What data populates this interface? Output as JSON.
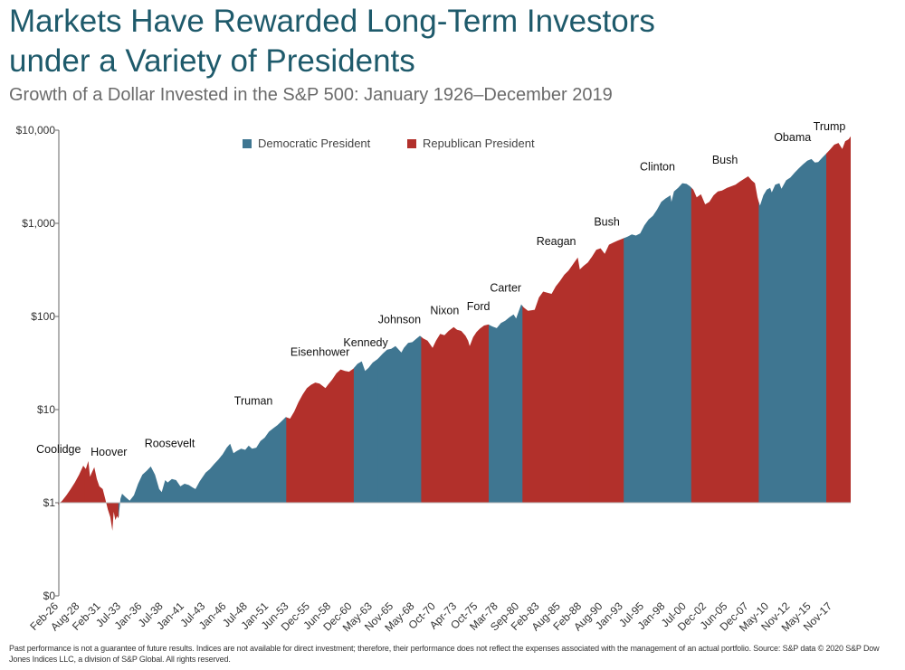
{
  "header": {
    "title_line1": "Markets Have Rewarded Long-Term Investors",
    "title_line2": "under a Variety of Presidents",
    "subtitle": "Growth of a Dollar Invested in the S&P 500: January 1926–December 2019"
  },
  "footer": {
    "disclaimer": "Past performance is not a guarantee of future results. Indices are not available for direct investment; therefore, their performance does not reflect the expenses associated with the management of an actual portfolio. Source: S&P data © 2020 S&P Dow Jones Indices LLC, a division of S&P Global. All rights reserved."
  },
  "colors": {
    "democratic": "#3f7691",
    "republican": "#b2302b",
    "axis": "#666666"
  },
  "chart_data": {
    "type": "area",
    "scale": "log",
    "ylim": [
      0.1,
      10000
    ],
    "xlim": [
      1926.1,
      2019.95
    ],
    "y_ticks": [
      {
        "value": 0.1,
        "label": "$0"
      },
      {
        "value": 1,
        "label": "$1"
      },
      {
        "value": 10,
        "label": "$10"
      },
      {
        "value": 100,
        "label": "$100"
      },
      {
        "value": 1000,
        "label": "$1,000"
      },
      {
        "value": 10000,
        "label": "$10,000"
      }
    ],
    "x_ticks": [
      {
        "t": 1926.1,
        "label": "Feb-26"
      },
      {
        "t": 1928.6,
        "label": "Aug-28"
      },
      {
        "t": 1931.1,
        "label": "Feb-31"
      },
      {
        "t": 1933.5,
        "label": "Jul-33"
      },
      {
        "t": 1936.0,
        "label": "Jan-36"
      },
      {
        "t": 1938.5,
        "label": "Jul-38"
      },
      {
        "t": 1941.0,
        "label": "Jan-41"
      },
      {
        "t": 1943.5,
        "label": "Jul-43"
      },
      {
        "t": 1946.0,
        "label": "Jan-46"
      },
      {
        "t": 1948.5,
        "label": "Jul-48"
      },
      {
        "t": 1951.0,
        "label": "Jan-51"
      },
      {
        "t": 1953.4,
        "label": "Jun-53"
      },
      {
        "t": 1955.9,
        "label": "Dec-55"
      },
      {
        "t": 1958.4,
        "label": "Jun-58"
      },
      {
        "t": 1960.9,
        "label": "Dec-60"
      },
      {
        "t": 1963.3,
        "label": "May-63"
      },
      {
        "t": 1965.8,
        "label": "Nov-65"
      },
      {
        "t": 1968.3,
        "label": "May-68"
      },
      {
        "t": 1970.8,
        "label": "Oct-70"
      },
      {
        "t": 1973.3,
        "label": "Apr-73"
      },
      {
        "t": 1975.8,
        "label": "Oct-75"
      },
      {
        "t": 1978.2,
        "label": "Mar-78"
      },
      {
        "t": 1980.7,
        "label": "Sep-80"
      },
      {
        "t": 1983.1,
        "label": "Feb-83"
      },
      {
        "t": 1985.6,
        "label": "Aug-85"
      },
      {
        "t": 1988.1,
        "label": "Feb-88"
      },
      {
        "t": 1990.6,
        "label": "Aug-90"
      },
      {
        "t": 1993.0,
        "label": "Jan-93"
      },
      {
        "t": 1995.5,
        "label": "Jul-95"
      },
      {
        "t": 1998.0,
        "label": "Jan-98"
      },
      {
        "t": 2000.5,
        "label": "Jul-00"
      },
      {
        "t": 2002.9,
        "label": "Dec-02"
      },
      {
        "t": 2005.4,
        "label": "Jun-05"
      },
      {
        "t": 2007.9,
        "label": "Dec-07"
      },
      {
        "t": 2010.3,
        "label": "May-10"
      },
      {
        "t": 2012.8,
        "label": "Nov-12"
      },
      {
        "t": 2015.3,
        "label": "May-15"
      },
      {
        "t": 2017.8,
        "label": "Nov-17"
      }
    ],
    "legend": [
      {
        "name": "Democratic President",
        "party": "D"
      },
      {
        "name": "Republican President",
        "party": "R"
      }
    ],
    "legend_position": "top-center",
    "presidents": [
      {
        "name": "Coolidge",
        "party": "R",
        "start": 1926.0,
        "end": 1929.17
      },
      {
        "name": "Hoover",
        "party": "R",
        "start": 1929.17,
        "end": 1933.17
      },
      {
        "name": "Roosevelt",
        "party": "D",
        "start": 1933.17,
        "end": 1945.3
      },
      {
        "name": "Truman",
        "party": "D",
        "start": 1945.3,
        "end": 1953.05
      },
      {
        "name": "Eisenhower",
        "party": "R",
        "start": 1953.05,
        "end": 1961.05
      },
      {
        "name": "Kennedy",
        "party": "D",
        "start": 1961.05,
        "end": 1963.9
      },
      {
        "name": "Johnson",
        "party": "D",
        "start": 1963.9,
        "end": 1969.05
      },
      {
        "name": "Nixon",
        "party": "R",
        "start": 1969.05,
        "end": 1974.6
      },
      {
        "name": "Ford",
        "party": "R",
        "start": 1974.6,
        "end": 1977.05
      },
      {
        "name": "Carter",
        "party": "D",
        "start": 1977.05,
        "end": 1981.05
      },
      {
        "name": "Reagan",
        "party": "R",
        "start": 1981.05,
        "end": 1989.05
      },
      {
        "name": "Bush",
        "party": "R",
        "start": 1989.05,
        "end": 1993.05
      },
      {
        "name": "Clinton",
        "party": "D",
        "start": 1993.05,
        "end": 2001.05
      },
      {
        "name": "Bush",
        "party": "R",
        "start": 2001.05,
        "end": 2009.05
      },
      {
        "name": "Obama",
        "party": "D",
        "start": 2009.05,
        "end": 2017.05
      },
      {
        "name": "Trump",
        "party": "R",
        "start": 2017.05,
        "end": 2019.95
      }
    ],
    "series": [
      {
        "t": 1926.0,
        "v": 0.95
      },
      {
        "t": 1926.5,
        "v": 1.05
      },
      {
        "t": 1927.0,
        "v": 1.2
      },
      {
        "t": 1927.5,
        "v": 1.4
      },
      {
        "t": 1928.0,
        "v": 1.65
      },
      {
        "t": 1928.5,
        "v": 2.0
      },
      {
        "t": 1929.0,
        "v": 2.5
      },
      {
        "t": 1929.3,
        "v": 2.3
      },
      {
        "t": 1929.6,
        "v": 2.8
      },
      {
        "t": 1929.8,
        "v": 1.9
      },
      {
        "t": 1930.0,
        "v": 2.1
      },
      {
        "t": 1930.3,
        "v": 2.4
      },
      {
        "t": 1930.6,
        "v": 1.8
      },
      {
        "t": 1930.9,
        "v": 1.5
      },
      {
        "t": 1931.3,
        "v": 1.4
      },
      {
        "t": 1931.6,
        "v": 1.1
      },
      {
        "t": 1931.9,
        "v": 0.85
      },
      {
        "t": 1932.2,
        "v": 0.7
      },
      {
        "t": 1932.45,
        "v": 0.5
      },
      {
        "t": 1932.6,
        "v": 0.8
      },
      {
        "t": 1932.8,
        "v": 0.65
      },
      {
        "t": 1933.0,
        "v": 0.72
      },
      {
        "t": 1933.17,
        "v": 0.68
      },
      {
        "t": 1933.4,
        "v": 1.1
      },
      {
        "t": 1933.6,
        "v": 1.25
      },
      {
        "t": 1934.0,
        "v": 1.15
      },
      {
        "t": 1934.5,
        "v": 1.05
      },
      {
        "t": 1935.0,
        "v": 1.2
      },
      {
        "t": 1935.5,
        "v": 1.6
      },
      {
        "t": 1936.0,
        "v": 2.0
      },
      {
        "t": 1936.5,
        "v": 2.2
      },
      {
        "t": 1937.0,
        "v": 2.45
      },
      {
        "t": 1937.5,
        "v": 2.0
      },
      {
        "t": 1938.0,
        "v": 1.4
      },
      {
        "t": 1938.3,
        "v": 1.3
      },
      {
        "t": 1938.7,
        "v": 1.75
      },
      {
        "t": 1939.0,
        "v": 1.65
      },
      {
        "t": 1939.5,
        "v": 1.8
      },
      {
        "t": 1940.0,
        "v": 1.75
      },
      {
        "t": 1940.5,
        "v": 1.5
      },
      {
        "t": 1941.0,
        "v": 1.6
      },
      {
        "t": 1941.5,
        "v": 1.55
      },
      {
        "t": 1942.0,
        "v": 1.45
      },
      {
        "t": 1942.3,
        "v": 1.4
      },
      {
        "t": 1942.8,
        "v": 1.7
      },
      {
        "t": 1943.5,
        "v": 2.1
      },
      {
        "t": 1944.0,
        "v": 2.3
      },
      {
        "t": 1944.5,
        "v": 2.6
      },
      {
        "t": 1945.0,
        "v": 2.9
      },
      {
        "t": 1945.5,
        "v": 3.3
      },
      {
        "t": 1946.0,
        "v": 3.9
      },
      {
        "t": 1946.4,
        "v": 4.3
      },
      {
        "t": 1946.8,
        "v": 3.4
      },
      {
        "t": 1947.2,
        "v": 3.6
      },
      {
        "t": 1947.7,
        "v": 3.8
      },
      {
        "t": 1948.2,
        "v": 3.7
      },
      {
        "t": 1948.6,
        "v": 4.1
      },
      {
        "t": 1949.0,
        "v": 3.8
      },
      {
        "t": 1949.5,
        "v": 3.9
      },
      {
        "t": 1950.0,
        "v": 4.6
      },
      {
        "t": 1950.5,
        "v": 5.0
      },
      {
        "t": 1951.0,
        "v": 5.8
      },
      {
        "t": 1951.5,
        "v": 6.3
      },
      {
        "t": 1952.0,
        "v": 6.8
      },
      {
        "t": 1952.5,
        "v": 7.5
      },
      {
        "t": 1953.0,
        "v": 8.3
      },
      {
        "t": 1953.5,
        "v": 8.0
      },
      {
        "t": 1954.0,
        "v": 9.5
      },
      {
        "t": 1954.5,
        "v": 12.0
      },
      {
        "t": 1955.0,
        "v": 14.5
      },
      {
        "t": 1955.5,
        "v": 17.0
      },
      {
        "t": 1956.0,
        "v": 18.5
      },
      {
        "t": 1956.5,
        "v": 19.5
      },
      {
        "t": 1957.0,
        "v": 19.0
      },
      {
        "t": 1957.7,
        "v": 17.0
      },
      {
        "t": 1958.0,
        "v": 18.5
      },
      {
        "t": 1958.5,
        "v": 21.0
      },
      {
        "t": 1959.0,
        "v": 24.5
      },
      {
        "t": 1959.5,
        "v": 27.0
      },
      {
        "t": 1960.0,
        "v": 26.0
      },
      {
        "t": 1960.5,
        "v": 25.5
      },
      {
        "t": 1961.0,
        "v": 27.5
      },
      {
        "t": 1961.5,
        "v": 31.0
      },
      {
        "t": 1962.0,
        "v": 33.0
      },
      {
        "t": 1962.4,
        "v": 26.0
      },
      {
        "t": 1962.8,
        "v": 28.0
      },
      {
        "t": 1963.3,
        "v": 32.0
      },
      {
        "t": 1963.9,
        "v": 35.0
      },
      {
        "t": 1964.5,
        "v": 40.0
      },
      {
        "t": 1965.0,
        "v": 44.0
      },
      {
        "t": 1965.5,
        "v": 45.0
      },
      {
        "t": 1966.0,
        "v": 48.0
      },
      {
        "t": 1966.7,
        "v": 41.0
      },
      {
        "t": 1967.0,
        "v": 46.0
      },
      {
        "t": 1967.5,
        "v": 52.0
      },
      {
        "t": 1968.0,
        "v": 53.0
      },
      {
        "t": 1968.5,
        "v": 58.0
      },
      {
        "t": 1968.9,
        "v": 62.0
      },
      {
        "t": 1969.3,
        "v": 58.0
      },
      {
        "t": 1969.8,
        "v": 55.0
      },
      {
        "t": 1970.4,
        "v": 46.0
      },
      {
        "t": 1970.8,
        "v": 55.0
      },
      {
        "t": 1971.3,
        "v": 65.0
      },
      {
        "t": 1971.8,
        "v": 63.0
      },
      {
        "t": 1972.3,
        "v": 70.0
      },
      {
        "t": 1972.9,
        "v": 77.0
      },
      {
        "t": 1973.3,
        "v": 72.0
      },
      {
        "t": 1973.8,
        "v": 70.0
      },
      {
        "t": 1974.3,
        "v": 62.0
      },
      {
        "t": 1974.6,
        "v": 55.0
      },
      {
        "t": 1974.8,
        "v": 48.0
      },
      {
        "t": 1975.2,
        "v": 60.0
      },
      {
        "t": 1975.6,
        "v": 68.0
      },
      {
        "t": 1976.0,
        "v": 74.0
      },
      {
        "t": 1976.5,
        "v": 80.0
      },
      {
        "t": 1977.0,
        "v": 82.0
      },
      {
        "t": 1977.5,
        "v": 78.0
      },
      {
        "t": 1978.0,
        "v": 75.0
      },
      {
        "t": 1978.5,
        "v": 85.0
      },
      {
        "t": 1979.0,
        "v": 90.0
      },
      {
        "t": 1979.5,
        "v": 98.0
      },
      {
        "t": 1980.0,
        "v": 105.0
      },
      {
        "t": 1980.3,
        "v": 95.0
      },
      {
        "t": 1980.9,
        "v": 135.0
      },
      {
        "t": 1981.2,
        "v": 125.0
      },
      {
        "t": 1981.7,
        "v": 115.0
      },
      {
        "t": 1982.5,
        "v": 118.0
      },
      {
        "t": 1983.0,
        "v": 160.0
      },
      {
        "t": 1983.5,
        "v": 185.0
      },
      {
        "t": 1984.0,
        "v": 180.0
      },
      {
        "t": 1984.5,
        "v": 175.0
      },
      {
        "t": 1985.0,
        "v": 210.0
      },
      {
        "t": 1985.5,
        "v": 240.0
      },
      {
        "t": 1986.0,
        "v": 280.0
      },
      {
        "t": 1986.5,
        "v": 310.0
      },
      {
        "t": 1987.0,
        "v": 360.0
      },
      {
        "t": 1987.6,
        "v": 430.0
      },
      {
        "t": 1987.85,
        "v": 320.0
      },
      {
        "t": 1988.3,
        "v": 350.0
      },
      {
        "t": 1988.8,
        "v": 380.0
      },
      {
        "t": 1989.3,
        "v": 440.0
      },
      {
        "t": 1989.8,
        "v": 520.0
      },
      {
        "t": 1990.3,
        "v": 540.0
      },
      {
        "t": 1990.8,
        "v": 470.0
      },
      {
        "t": 1991.3,
        "v": 590.0
      },
      {
        "t": 1991.8,
        "v": 620.0
      },
      {
        "t": 1992.3,
        "v": 650.0
      },
      {
        "t": 1993.0,
        "v": 690.0
      },
      {
        "t": 1993.5,
        "v": 720.0
      },
      {
        "t": 1994.0,
        "v": 760.0
      },
      {
        "t": 1994.5,
        "v": 740.0
      },
      {
        "t": 1995.0,
        "v": 780.0
      },
      {
        "t": 1995.5,
        "v": 950.0
      },
      {
        "t": 1996.0,
        "v": 1100.0
      },
      {
        "t": 1996.5,
        "v": 1200.0
      },
      {
        "t": 1997.0,
        "v": 1400.0
      },
      {
        "t": 1997.5,
        "v": 1700.0
      },
      {
        "t": 1998.0,
        "v": 1850.0
      },
      {
        "t": 1998.6,
        "v": 2000.0
      },
      {
        "t": 1998.7,
        "v": 1700.0
      },
      {
        "t": 1999.0,
        "v": 2200.0
      },
      {
        "t": 1999.5,
        "v": 2400.0
      },
      {
        "t": 2000.0,
        "v": 2700.0
      },
      {
        "t": 2000.5,
        "v": 2650.0
      },
      {
        "t": 2000.9,
        "v": 2500.0
      },
      {
        "t": 2001.3,
        "v": 2300.0
      },
      {
        "t": 2001.7,
        "v": 1900.0
      },
      {
        "t": 2002.2,
        "v": 2050.0
      },
      {
        "t": 2002.7,
        "v": 1600.0
      },
      {
        "t": 2003.2,
        "v": 1700.0
      },
      {
        "t": 2003.7,
        "v": 2000.0
      },
      {
        "t": 2004.2,
        "v": 2200.0
      },
      {
        "t": 2004.7,
        "v": 2250.0
      },
      {
        "t": 2005.3,
        "v": 2400.0
      },
      {
        "t": 2005.8,
        "v": 2500.0
      },
      {
        "t": 2006.3,
        "v": 2600.0
      },
      {
        "t": 2006.8,
        "v": 2800.0
      },
      {
        "t": 2007.3,
        "v": 3000.0
      },
      {
        "t": 2007.8,
        "v": 3200.0
      },
      {
        "t": 2008.2,
        "v": 2900.0
      },
      {
        "t": 2008.6,
        "v": 2700.0
      },
      {
        "t": 2008.9,
        "v": 1900.0
      },
      {
        "t": 2009.05,
        "v": 1700.0
      },
      {
        "t": 2009.2,
        "v": 1550.0
      },
      {
        "t": 2009.6,
        "v": 2000.0
      },
      {
        "t": 2010.0,
        "v": 2300.0
      },
      {
        "t": 2010.4,
        "v": 2400.0
      },
      {
        "t": 2010.6,
        "v": 2150.0
      },
      {
        "t": 2011.0,
        "v": 2600.0
      },
      {
        "t": 2011.5,
        "v": 2700.0
      },
      {
        "t": 2011.75,
        "v": 2350.0
      },
      {
        "t": 2012.3,
        "v": 2900.0
      },
      {
        "t": 2012.8,
        "v": 3100.0
      },
      {
        "t": 2013.3,
        "v": 3500.0
      },
      {
        "t": 2013.8,
        "v": 3900.0
      },
      {
        "t": 2014.3,
        "v": 4300.0
      },
      {
        "t": 2014.8,
        "v": 4700.0
      },
      {
        "t": 2015.3,
        "v": 4900.0
      },
      {
        "t": 2015.7,
        "v": 4500.0
      },
      {
        "t": 2016.1,
        "v": 4550.0
      },
      {
        "t": 2016.6,
        "v": 5100.0
      },
      {
        "t": 2017.05,
        "v": 5600.0
      },
      {
        "t": 2017.5,
        "v": 6200.0
      },
      {
        "t": 2018.0,
        "v": 7000.0
      },
      {
        "t": 2018.5,
        "v": 7300.0
      },
      {
        "t": 2018.95,
        "v": 6300.0
      },
      {
        "t": 2019.3,
        "v": 7600.0
      },
      {
        "t": 2019.7,
        "v": 8000.0
      },
      {
        "t": 2019.95,
        "v": 8600.0
      }
    ]
  }
}
